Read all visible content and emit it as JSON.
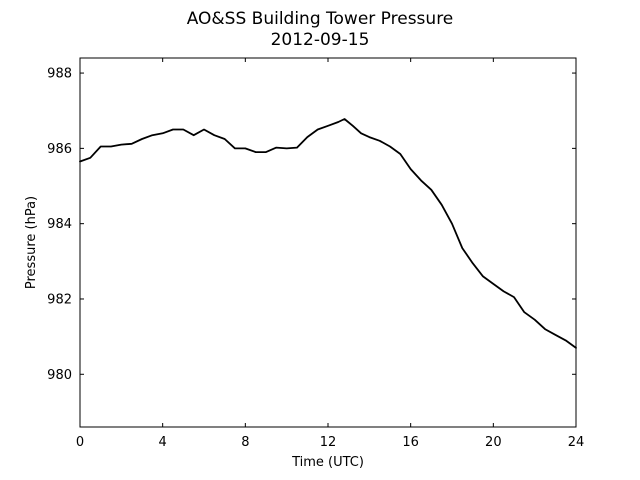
{
  "chart_data": {
    "type": "line",
    "title": "AO&SS Building Tower Pressure",
    "subtitle": "2012-09-15",
    "xlabel": "Time (UTC)",
    "ylabel": "Pressure (hPa)",
    "xlim": [
      0,
      24
    ],
    "ylim": [
      978.6,
      988.4
    ],
    "xticks": [
      0,
      4,
      8,
      12,
      16,
      20,
      24
    ],
    "yticks": [
      980,
      982,
      984,
      986,
      988
    ],
    "grid": false,
    "line_color": "#000000",
    "series": [
      {
        "x": [
          0,
          0.5,
          1,
          1.5,
          2,
          2.5,
          3,
          3.5,
          4,
          4.5,
          5,
          5.5,
          6,
          6.5,
          7,
          7.5,
          8,
          8.5,
          9,
          9.5,
          10,
          10.5,
          11,
          11.5,
          12,
          12.5,
          12.8,
          13.2,
          13.6,
          14,
          14.5,
          15,
          15.5,
          16,
          16.5,
          17,
          17.5,
          18,
          18.5,
          19,
          19.5,
          20,
          20.5,
          21,
          21.5,
          22,
          22.5,
          23,
          23.5,
          24
        ],
        "values": [
          985.65,
          985.75,
          986.05,
          986.05,
          986.1,
          986.12,
          986.25,
          986.35,
          986.4,
          986.5,
          986.5,
          986.35,
          986.5,
          986.35,
          986.25,
          986.0,
          986.0,
          985.9,
          985.9,
          986.02,
          986.0,
          986.02,
          986.3,
          986.5,
          986.6,
          986.7,
          986.78,
          986.6,
          986.4,
          986.3,
          986.2,
          986.05,
          985.85,
          985.45,
          985.15,
          984.9,
          984.5,
          984.0,
          983.35,
          982.95,
          982.6,
          982.4,
          982.2,
          982.05,
          981.65,
          981.45,
          981.2,
          981.05,
          980.9,
          980.7
        ]
      }
    ]
  }
}
